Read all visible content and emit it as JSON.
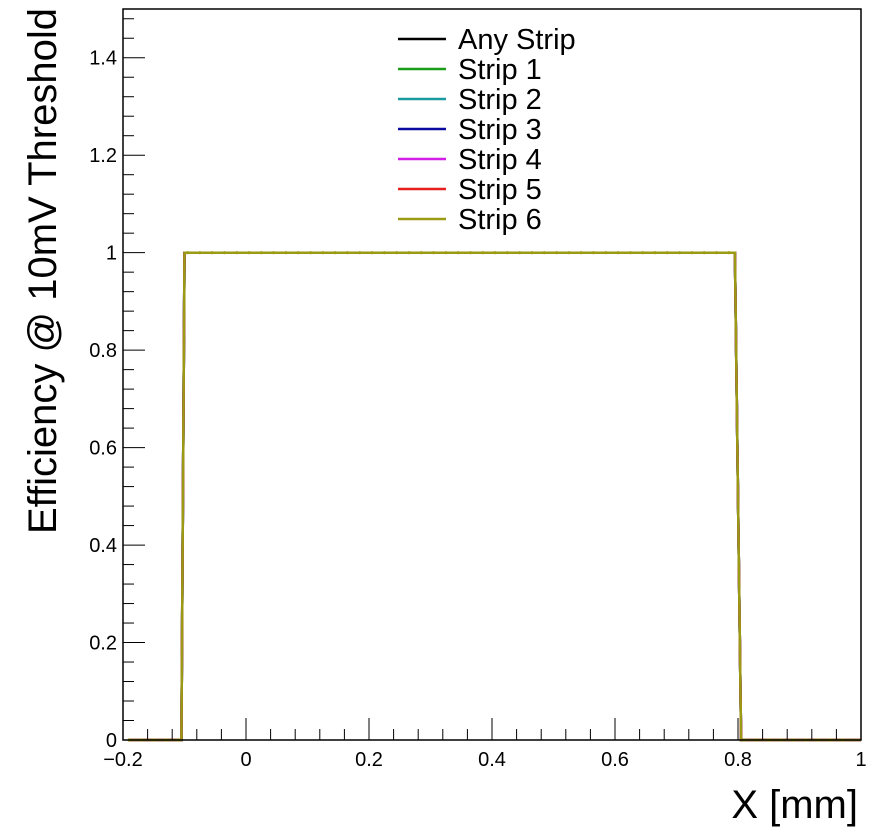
{
  "chart_data": {
    "type": "line",
    "title": "",
    "xlabel": "X [mm]",
    "ylabel": "Efficiency @ 10mV Threshold",
    "xlim": [
      -0.2,
      1.0
    ],
    "ylim": [
      0,
      1.5
    ],
    "x_ticks": [
      {
        "v": -0.2,
        "label": "−0.2"
      },
      {
        "v": 0,
        "label": "0"
      },
      {
        "v": 0.2,
        "label": "0.2"
      },
      {
        "v": 0.4,
        "label": "0.4"
      },
      {
        "v": 0.6,
        "label": "0.6"
      },
      {
        "v": 0.8,
        "label": "0.8"
      },
      {
        "v": 1.0,
        "label": "1"
      }
    ],
    "y_ticks": [
      {
        "v": 0,
        "label": "0"
      },
      {
        "v": 0.2,
        "label": "0.2"
      },
      {
        "v": 0.4,
        "label": "0.4"
      },
      {
        "v": 0.6,
        "label": "0.6"
      },
      {
        "v": 0.8,
        "label": "0.8"
      },
      {
        "v": 1.0,
        "label": "1"
      },
      {
        "v": 1.2,
        "label": "1.2"
      },
      {
        "v": 1.4,
        "label": "1.4"
      }
    ],
    "grid": false,
    "legend_position": "top-center",
    "series": [
      {
        "name": "Any Strip",
        "color": "#000000",
        "x": [
          -0.19,
          -0.11,
          -0.105,
          -0.1,
          0.79,
          0.795,
          0.805,
          1.0
        ],
        "y": [
          0,
          0,
          0,
          1,
          1,
          1,
          0,
          0
        ]
      },
      {
        "name": "Strip 1",
        "color": "#1a9e1a",
        "x": [
          -0.19,
          -0.11,
          -0.105,
          -0.1,
          0.79,
          0.795,
          0.805,
          1.0
        ],
        "y": [
          0,
          0,
          0,
          1,
          1,
          1,
          0,
          0
        ]
      },
      {
        "name": "Strip 2",
        "color": "#1a9aa0",
        "x": [
          -0.19,
          -0.11,
          -0.105,
          -0.1,
          0.79,
          0.795,
          0.805,
          1.0
        ],
        "y": [
          0,
          0,
          0,
          1,
          1,
          1,
          0,
          0
        ]
      },
      {
        "name": "Strip 3",
        "color": "#0a0aa0",
        "x": [
          -0.19,
          -0.11,
          -0.105,
          -0.1,
          0.79,
          0.795,
          0.805,
          1.0
        ],
        "y": [
          0,
          0,
          0,
          1,
          1,
          1,
          0,
          0
        ]
      },
      {
        "name": "Strip 4",
        "color": "#d21ee6",
        "x": [
          -0.19,
          -0.11,
          -0.105,
          -0.1,
          0.79,
          0.795,
          0.805,
          1.0
        ],
        "y": [
          0,
          0,
          0,
          1,
          1,
          1,
          0,
          0
        ]
      },
      {
        "name": "Strip 5",
        "color": "#e61e1e",
        "x": [
          -0.19,
          -0.11,
          -0.105,
          -0.1,
          0.79,
          0.795,
          0.805,
          1.0
        ],
        "y": [
          0,
          0,
          0,
          1,
          1,
          1,
          0,
          0
        ]
      },
      {
        "name": "Strip 6",
        "color": "#9a9a14",
        "x": [
          -0.19,
          -0.11,
          -0.105,
          -0.1,
          0.79,
          0.795,
          0.805,
          1.0
        ],
        "y": [
          0,
          0,
          0,
          1,
          1,
          1,
          0,
          0
        ]
      }
    ]
  }
}
